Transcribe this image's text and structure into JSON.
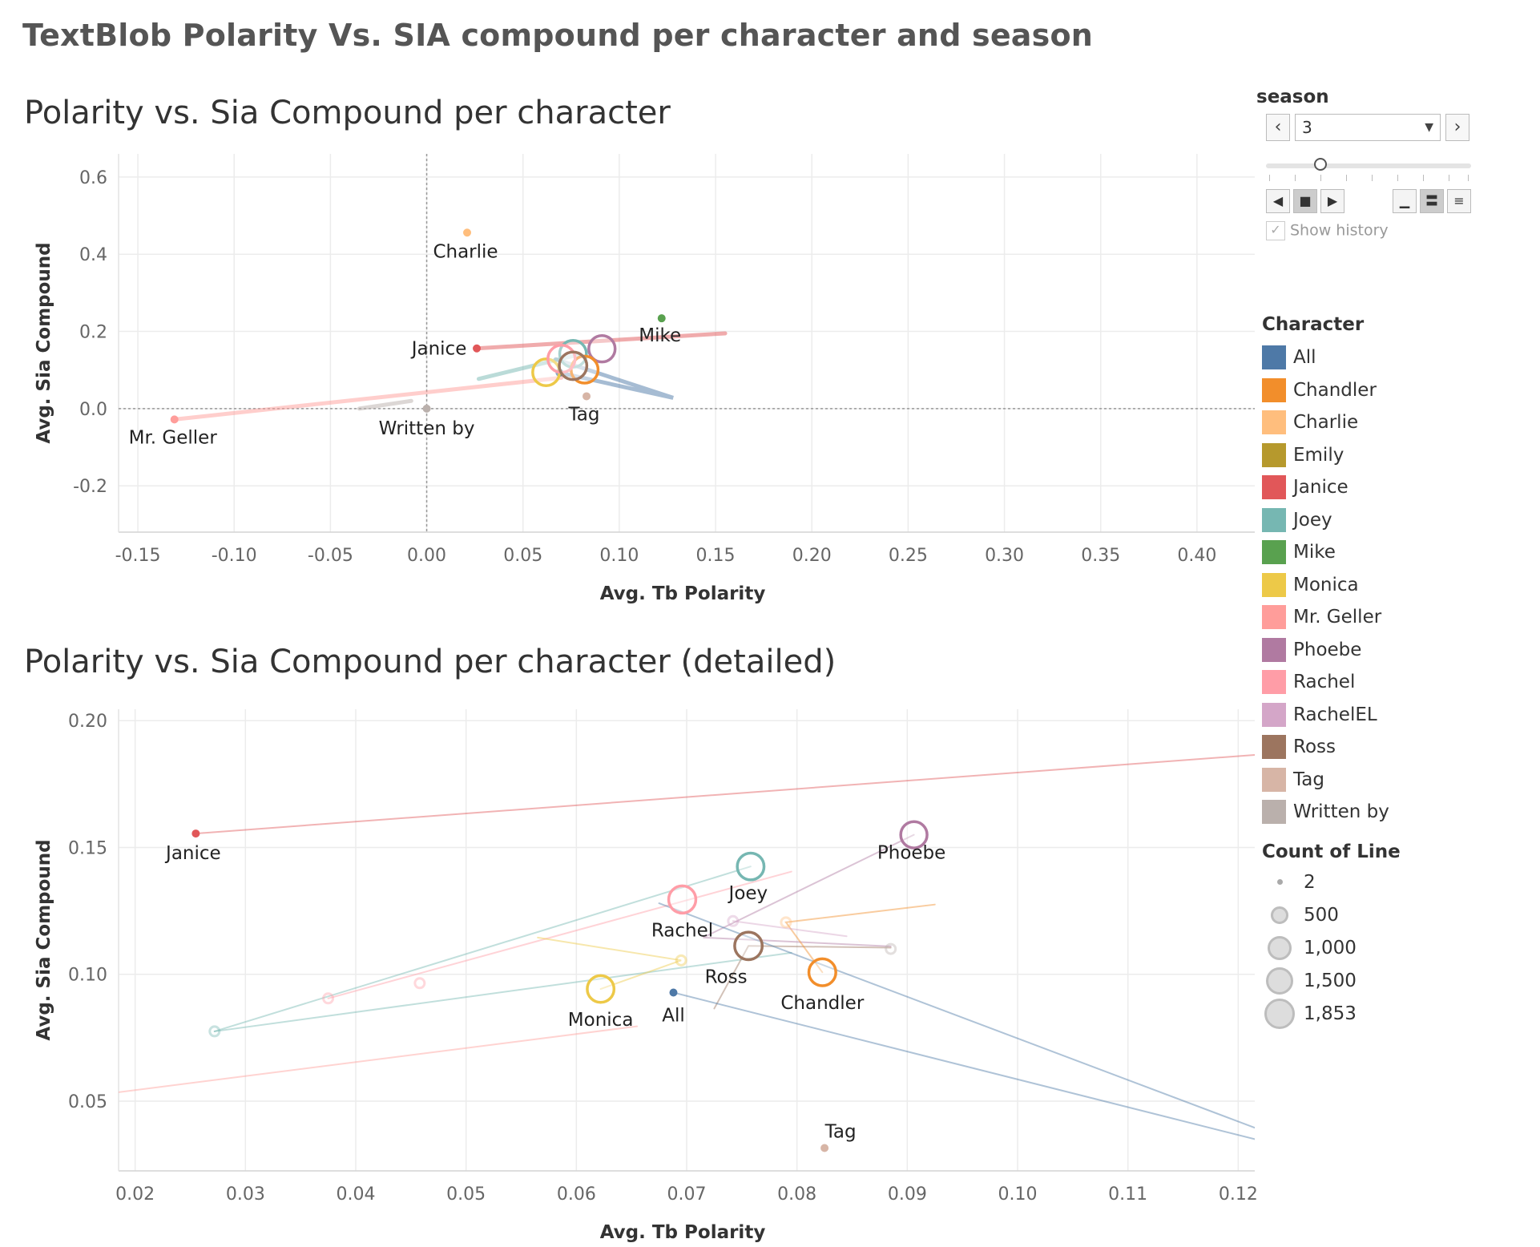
{
  "dashboard_title": "TextBlob Polarity Vs. SIA compound per character and season",
  "season_filter": {
    "label": "season",
    "value": "3",
    "show_history_label": "Show history"
  },
  "legend": {
    "title": "Character",
    "items": [
      {
        "name": "All",
        "color": "#4e79a7"
      },
      {
        "name": "Chandler",
        "color": "#f28e2b"
      },
      {
        "name": "Charlie",
        "color": "#ffbe7d"
      },
      {
        "name": "Emily",
        "color": "#b6992d"
      },
      {
        "name": "Janice",
        "color": "#e15759"
      },
      {
        "name": "Joey",
        "color": "#76b7b2"
      },
      {
        "name": "Mike",
        "color": "#59a14f"
      },
      {
        "name": "Monica",
        "color": "#edc948"
      },
      {
        "name": "Mr. Geller",
        "color": "#ff9d9a"
      },
      {
        "name": "Phoebe",
        "color": "#b07aa1"
      },
      {
        "name": "Rachel",
        "color": "#ff9da7"
      },
      {
        "name": "RachelEL",
        "color": "#d4a6c8"
      },
      {
        "name": "Ross",
        "color": "#9c755f"
      },
      {
        "name": "Tag",
        "color": "#d7b5a6"
      },
      {
        "name": "Written by",
        "color": "#bab0ac"
      }
    ]
  },
  "size_legend": {
    "title": "Count of Line",
    "items": [
      "2",
      "500",
      "1,000",
      "1,500",
      "1,853"
    ]
  },
  "chart_data": [
    {
      "type": "scatter",
      "title": "Polarity vs. Sia Compound per character",
      "xlabel": "Avg. Tb Polarity",
      "ylabel": "Avg. Sia Compound",
      "xlim": [
        -0.16,
        0.43
      ],
      "ylim": [
        -0.32,
        0.66
      ],
      "xticks": [
        "-0.15",
        "-0.10",
        "-0.05",
        "0.00",
        "0.05",
        "0.10",
        "0.15",
        "0.20",
        "0.25",
        "0.30",
        "0.35",
        "0.40"
      ],
      "xtick_values": [
        -0.15,
        -0.1,
        -0.05,
        0.0,
        0.05,
        0.1,
        0.15,
        0.2,
        0.25,
        0.3,
        0.35,
        0.4
      ],
      "yticks": [
        "0.6",
        "0.4",
        "0.2",
        "0.0",
        "-0.2"
      ],
      "ytick_values": [
        0.6,
        0.4,
        0.2,
        0.0,
        -0.2
      ],
      "zero_lines": true,
      "grid": true,
      "points": [
        {
          "name": "Charlie",
          "x": 0.021,
          "y": 0.456,
          "count": 2,
          "label": "Charlie"
        },
        {
          "name": "Mike",
          "x": 0.122,
          "y": 0.234,
          "count": 2,
          "label": "Mike"
        },
        {
          "name": "Janice",
          "x": 0.026,
          "y": 0.156,
          "count": 20,
          "label": "Janice"
        },
        {
          "name": "Mr. Geller",
          "x": -0.131,
          "y": -0.028,
          "count": 10,
          "label": "Mr. Geller"
        },
        {
          "name": "Written by",
          "x": 0.0,
          "y": 0.0,
          "count": 30,
          "label": "Written by"
        },
        {
          "name": "Tag",
          "x": 0.083,
          "y": 0.032,
          "count": 5,
          "label": "Tag"
        },
        {
          "name": "All",
          "x": 0.069,
          "y": 0.093,
          "count": 20
        },
        {
          "name": "Phoebe",
          "x": 0.091,
          "y": 0.155,
          "count": 1200
        },
        {
          "name": "Joey",
          "x": 0.076,
          "y": 0.142,
          "count": 1300
        },
        {
          "name": "Rachel",
          "x": 0.07,
          "y": 0.129,
          "count": 1400
        },
        {
          "name": "Ross",
          "x": 0.076,
          "y": 0.111,
          "count": 1500
        },
        {
          "name": "Chandler",
          "x": 0.082,
          "y": 0.101,
          "count": 1350
        },
        {
          "name": "Monica",
          "x": 0.062,
          "y": 0.094,
          "count": 1300
        }
      ],
      "trails": [
        {
          "name": "Janice",
          "points": [
            [
              0.026,
              0.156
            ],
            [
              0.155,
              0.195
            ]
          ]
        },
        {
          "name": "Mr. Geller",
          "points": [
            [
              -0.131,
              -0.028
            ],
            [
              0.07,
              0.08
            ]
          ]
        },
        {
          "name": "All",
          "points": [
            [
              0.069,
              0.093
            ],
            [
              0.128,
              0.028
            ],
            [
              0.067,
              0.128
            ]
          ]
        },
        {
          "name": "Written by",
          "points": [
            [
              -0.035,
              0.0
            ],
            [
              -0.008,
              0.02
            ]
          ]
        },
        {
          "name": "Joey",
          "points": [
            [
              0.027,
              0.077
            ],
            [
              0.079,
              0.14
            ]
          ]
        }
      ]
    },
    {
      "type": "scatter",
      "title": "Polarity vs. Sia Compound per character (detailed)",
      "xlabel": "Avg. Tb Polarity",
      "ylabel": "Avg. Sia Compound",
      "xlim": [
        0.0185,
        0.1215
      ],
      "ylim": [
        0.0225,
        0.2045
      ],
      "xticks": [
        "0.02",
        "0.03",
        "0.04",
        "0.05",
        "0.06",
        "0.07",
        "0.08",
        "0.09",
        "0.10",
        "0.11",
        "0.12"
      ],
      "xtick_values": [
        0.02,
        0.03,
        0.04,
        0.05,
        0.06,
        0.07,
        0.08,
        0.09,
        0.1,
        0.11,
        0.12
      ],
      "yticks": [
        "0.20",
        "0.15",
        "0.10",
        "0.05"
      ],
      "ytick_values": [
        0.2,
        0.15,
        0.1,
        0.05
      ],
      "grid": true,
      "points": [
        {
          "name": "Janice",
          "x": 0.0255,
          "y": 0.1555,
          "count": 20,
          "label": "Janice"
        },
        {
          "name": "Phoebe",
          "x": 0.0906,
          "y": 0.155,
          "count": 1200,
          "label": "Phoebe"
        },
        {
          "name": "Joey",
          "x": 0.0758,
          "y": 0.1425,
          "count": 1300,
          "label": "Joey"
        },
        {
          "name": "Rachel",
          "x": 0.0696,
          "y": 0.1295,
          "count": 1400,
          "label": "Rachel"
        },
        {
          "name": "Ross",
          "x": 0.0756,
          "y": 0.1112,
          "count": 1500,
          "label": "Ross"
        },
        {
          "name": "Chandler",
          "x": 0.0823,
          "y": 0.1008,
          "count": 1350,
          "label": "Chandler"
        },
        {
          "name": "Monica",
          "x": 0.0622,
          "y": 0.0942,
          "count": 1300,
          "label": "Monica"
        },
        {
          "name": "All",
          "x": 0.0688,
          "y": 0.0928,
          "count": 20,
          "label": "All"
        },
        {
          "name": "Tag",
          "x": 0.0825,
          "y": 0.0315,
          "count": 5,
          "label": "Tag"
        }
      ],
      "trails": [
        {
          "name": "Janice",
          "points": [
            [
              0.0255,
              0.1555
            ],
            [
              0.1215,
              0.1865
            ]
          ]
        },
        {
          "name": "Mr. Geller",
          "points": [
            [
              0.0185,
              0.0535
            ],
            [
              0.0655,
              0.0795
            ]
          ]
        },
        {
          "name": "Phoebe",
          "points": [
            [
              0.0906,
              0.155
            ],
            [
              0.0715,
              0.1145
            ],
            [
              0.0885,
              0.111
            ]
          ]
        },
        {
          "name": "Joey",
          "points": [
            [
              0.0272,
              0.0775
            ],
            [
              0.0758,
              0.1425
            ]
          ]
        },
        {
          "name": "Joey",
          "points": [
            [
              0.0272,
              0.0775
            ],
            [
              0.0795,
              0.1085
            ]
          ]
        },
        {
          "name": "Rachel",
          "points": [
            [
              0.0375,
              0.0905
            ],
            [
              0.0795,
              0.1405
            ]
          ]
        },
        {
          "name": "Ross",
          "points": [
            [
              0.0725,
              0.0865
            ],
            [
              0.0756,
              0.1112
            ],
            [
              0.0885,
              0.1105
            ]
          ]
        },
        {
          "name": "Chandler",
          "points": [
            [
              0.0823,
              0.1008
            ],
            [
              0.079,
              0.1205
            ],
            [
              0.0925,
              0.1275
            ]
          ]
        },
        {
          "name": "Monica",
          "points": [
            [
              0.0622,
              0.0942
            ],
            [
              0.0695,
              0.1055
            ],
            [
              0.0565,
              0.1145
            ]
          ]
        },
        {
          "name": "All",
          "points": [
            [
              0.0688,
              0.0928
            ],
            [
              0.1215,
              0.035
            ]
          ]
        },
        {
          "name": "All",
          "points": [
            [
              0.0675,
              0.128
            ],
            [
              0.1215,
              0.0395
            ]
          ]
        },
        {
          "name": "RachelEL",
          "points": [
            [
              0.0742,
              0.121
            ],
            [
              0.0845,
              0.115
            ]
          ]
        }
      ],
      "history_marks": [
        {
          "name": "Joey",
          "x": 0.0272,
          "y": 0.0775
        },
        {
          "name": "Rachel",
          "x": 0.0375,
          "y": 0.0905
        },
        {
          "name": "Rachel",
          "x": 0.0458,
          "y": 0.0965
        },
        {
          "name": "Monica",
          "x": 0.0695,
          "y": 0.1055
        },
        {
          "name": "RachelEL",
          "x": 0.0742,
          "y": 0.121
        },
        {
          "name": "Charlie",
          "x": 0.079,
          "y": 0.1205
        },
        {
          "name": "Written by",
          "x": 0.0885,
          "y": 0.11
        }
      ]
    }
  ]
}
